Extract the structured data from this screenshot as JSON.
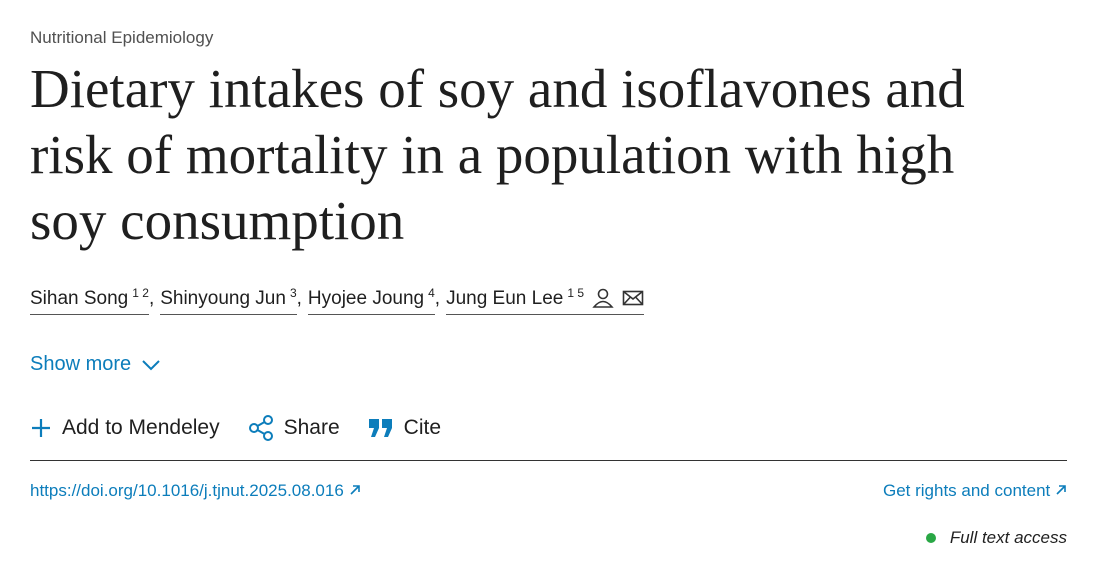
{
  "section": "Nutritional Epidemiology",
  "title_lines": [
    "Dietary intakes of soy and isoflavones and",
    "risk of mortality in a population with high",
    "soy consumption"
  ],
  "authors": [
    {
      "name": "Sihan Song",
      "sup": "1 2"
    },
    {
      "name": "Shinyoung Jun",
      "sup": "3"
    },
    {
      "name": "Hyojee Joung",
      "sup": "4"
    },
    {
      "name": "Jung Eun Lee",
      "sup": "1 5"
    }
  ],
  "author_separator": ",",
  "show_more": "Show more",
  "actions": [
    "Add to Mendeley",
    "Share",
    "Cite"
  ],
  "doi": "https://doi.org/10.1016/j.tjnut.2025.08.016",
  "rights": "Get rights and content",
  "access": "Full text access"
}
